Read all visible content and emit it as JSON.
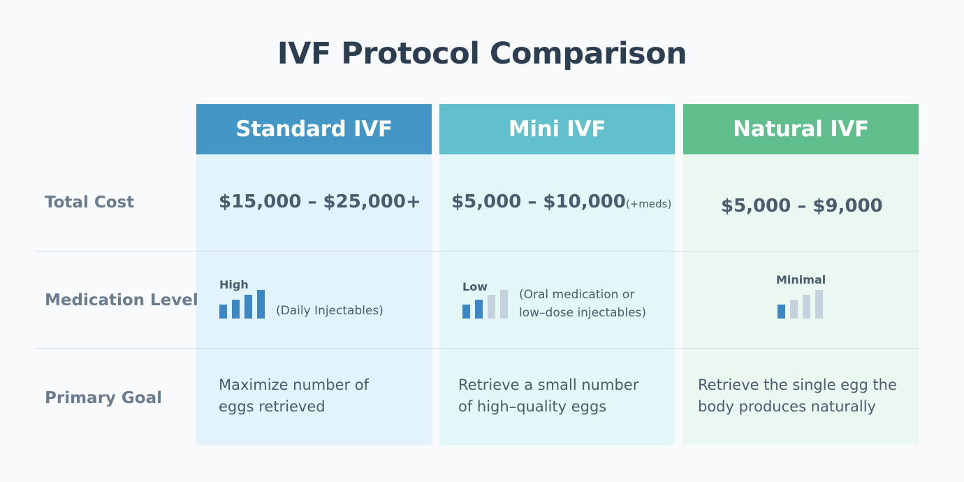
{
  "title": "IVF Protocol Comparison",
  "colors": {
    "standard_header": "#4497c4",
    "standard_body": "#e2f3fc",
    "mini_header": "#62c0cc",
    "mini_body": "#e3f7f9",
    "natural_header": "#60be8d",
    "natural_body": "#ebf8f2",
    "bar_active": "#3d86c4",
    "bar_inactive": "#c5d2dd"
  },
  "row_labels": {
    "cost": "Total Cost",
    "medication": "Medication Level",
    "goal": "Primary Goal"
  },
  "columns": [
    {
      "name": "Standard IVF",
      "cost": "$15,000 – $25,000+",
      "cost_note": "",
      "medication": {
        "level": "High",
        "bars_filled": 4,
        "bars_total": 4,
        "note_lines": [
          "(Daily Injectables)"
        ]
      },
      "goal_lines": [
        "Maximize number of",
        "eggs retrieved"
      ]
    },
    {
      "name": "Mini IVF",
      "cost": "$5,000 – $10,000",
      "cost_note": "(+meds)",
      "medication": {
        "level": "Low",
        "bars_filled": 2,
        "bars_total": 4,
        "note_lines": [
          "(Oral medication or",
          "low–dose injectables)"
        ]
      },
      "goal_lines": [
        "Retrieve a small number",
        "of high–quality eggs"
      ]
    },
    {
      "name": "Natural IVF",
      "cost": "$5,000 – $9,000",
      "cost_note": "",
      "medication": {
        "level": "Minimal",
        "bars_filled": 1,
        "bars_total": 4,
        "note_lines": []
      },
      "goal_lines": [
        "Retrieve the single egg the",
        "body produces naturally"
      ]
    }
  ]
}
